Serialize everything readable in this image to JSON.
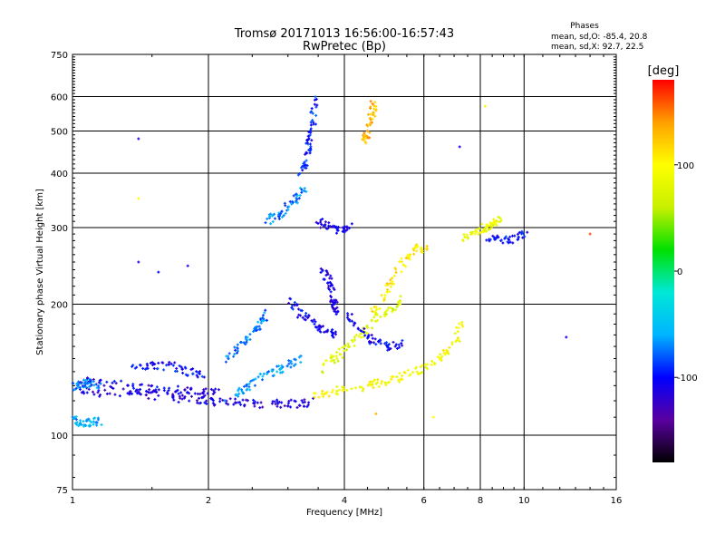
{
  "chart_data": {
    "type": "scatter",
    "title": "Tromsø 20171013 16:56:00-16:57:43",
    "subtitle": "RwPretec (Bp)",
    "xlabel": "Frequency [MHz]",
    "ylabel": "Stationary phase Virtual Height [km]",
    "x_scale": "log",
    "y_scale": "log",
    "xlim": [
      1,
      16
    ],
    "ylim": [
      75,
      750
    ],
    "x_ticks": [
      1,
      2,
      4,
      6,
      8,
      10,
      16
    ],
    "y_ticks": [
      75,
      100,
      200,
      300,
      400,
      500,
      600,
      750
    ],
    "grid": true,
    "phase_stats": {
      "title": "Phases",
      "line_o": "mean, sd,O: -85.4, 20.8",
      "line_x": "mean, sd,X:  92.7, 22.5"
    },
    "colorbar": {
      "label": "[deg]",
      "range": [
        -180,
        180
      ],
      "ticks": [
        100,
        0,
        -100
      ],
      "colors": [
        "#000000",
        "#5a00a0",
        "#0000ff",
        "#00b4ff",
        "#00e8d8",
        "#00e000",
        "#c8f000",
        "#ffff00",
        "#ffa000",
        "#ff0000"
      ]
    },
    "traces": [
      {
        "name": "",
        "phase": -115,
        "points": [
          [
            1.05,
            126
          ],
          [
            1.2,
            125
          ],
          [
            1.4,
            124
          ],
          [
            1.6,
            123
          ],
          [
            1.8,
            121
          ],
          [
            2.0,
            120
          ],
          [
            2.2,
            119
          ],
          [
            2.5,
            118
          ],
          [
            2.8,
            118
          ],
          [
            3.1,
            118
          ],
          [
            3.4,
            119
          ]
        ]
      },
      {
        "name": "",
        "phase": -110,
        "points": [
          [
            1.0,
            133
          ],
          [
            1.15,
            132
          ],
          [
            1.3,
            130
          ],
          [
            1.5,
            128
          ],
          [
            1.7,
            127
          ],
          [
            1.9,
            126
          ],
          [
            2.1,
            125
          ]
        ]
      },
      {
        "name": "",
        "phase": -60,
        "points": [
          [
            1.0,
            108
          ],
          [
            1.05,
            107
          ],
          [
            1.1,
            107
          ],
          [
            1.15,
            108
          ]
        ]
      },
      {
        "name": "",
        "phase": -70,
        "points": [
          [
            1.0,
            128
          ],
          [
            1.05,
            131
          ],
          [
            1.1,
            132
          ],
          [
            1.15,
            130
          ]
        ]
      },
      {
        "name": "",
        "phase": -100,
        "points": [
          [
            1.35,
            143
          ],
          [
            1.5,
            145
          ],
          [
            1.65,
            144
          ],
          [
            1.8,
            140
          ],
          [
            1.95,
            137
          ]
        ]
      },
      {
        "name": "",
        "phase": -65,
        "points": [
          [
            2.2,
            122
          ],
          [
            2.4,
            128
          ],
          [
            2.6,
            135
          ],
          [
            2.8,
            140
          ],
          [
            3.0,
            145
          ],
          [
            3.2,
            150
          ]
        ]
      },
      {
        "name": "",
        "phase": -75,
        "points": [
          [
            2.2,
            150
          ],
          [
            2.35,
            160
          ],
          [
            2.5,
            172
          ],
          [
            2.6,
            182
          ],
          [
            2.7,
            190
          ]
        ]
      },
      {
        "name": "",
        "phase": -70,
        "points": [
          [
            2.7,
            310
          ],
          [
            2.85,
            320
          ],
          [
            3.0,
            335
          ],
          [
            3.15,
            350
          ],
          [
            3.25,
            370
          ]
        ]
      },
      {
        "name": "",
        "phase": -95,
        "points": [
          [
            3.2,
            400
          ],
          [
            3.3,
            430
          ],
          [
            3.35,
            470
          ],
          [
            3.4,
            520
          ],
          [
            3.45,
            590
          ]
        ]
      },
      {
        "name": "",
        "phase": -105,
        "points": [
          [
            3.0,
            205
          ],
          [
            3.2,
            190
          ],
          [
            3.4,
            180
          ],
          [
            3.6,
            175
          ],
          [
            3.8,
            170
          ]
        ]
      },
      {
        "name": "",
        "phase": -110,
        "points": [
          [
            3.5,
            310
          ],
          [
            3.7,
            300
          ],
          [
            3.9,
            295
          ],
          [
            4.1,
            300
          ]
        ]
      },
      {
        "name": "",
        "phase": -115,
        "points": [
          [
            3.6,
            240
          ],
          [
            3.7,
            225
          ],
          [
            3.75,
            210
          ],
          [
            3.8,
            200
          ],
          [
            3.85,
            190
          ]
        ]
      },
      {
        "name": "",
        "phase": 95,
        "points": [
          [
            3.4,
            122
          ],
          [
            3.8,
            126
          ],
          [
            4.2,
            128
          ],
          [
            4.6,
            131
          ],
          [
            5.0,
            133
          ],
          [
            5.5,
            138
          ],
          [
            6.0,
            143
          ],
          [
            6.5,
            150
          ],
          [
            7.0,
            162
          ],
          [
            7.3,
            180
          ]
        ]
      },
      {
        "name": "",
        "phase": 75,
        "points": [
          [
            3.5,
            140
          ],
          [
            3.8,
            150
          ],
          [
            4.1,
            160
          ],
          [
            4.4,
            172
          ],
          [
            4.7,
            185
          ],
          [
            5.0,
            195
          ],
          [
            5.4,
            205
          ]
        ]
      },
      {
        "name": "",
        "phase": 110,
        "points": [
          [
            4.6,
            190
          ],
          [
            4.9,
            210
          ],
          [
            5.2,
            235
          ],
          [
            5.5,
            255
          ],
          [
            5.8,
            268
          ],
          [
            6.1,
            270
          ]
        ]
      },
      {
        "name": "",
        "phase": 90,
        "points": [
          [
            7.4,
            285
          ],
          [
            7.8,
            290
          ],
          [
            8.2,
            300
          ],
          [
            8.5,
            305
          ],
          [
            8.8,
            312
          ]
        ]
      },
      {
        "name": "",
        "phase": -100,
        "points": [
          [
            8.3,
            285
          ],
          [
            8.9,
            280
          ],
          [
            9.5,
            282
          ],
          [
            10.2,
            290
          ]
        ]
      },
      {
        "name": "",
        "phase": 130,
        "points": [
          [
            4.4,
            470
          ],
          [
            4.5,
            500
          ],
          [
            4.6,
            540
          ],
          [
            4.65,
            580
          ]
        ]
      },
      {
        "name": "",
        "phase": -105,
        "points": [
          [
            4.1,
            190
          ],
          [
            4.3,
            175
          ],
          [
            4.6,
            165
          ],
          [
            5.0,
            160
          ],
          [
            5.4,
            162
          ]
        ]
      }
    ],
    "isolated_points": [
      {
        "x": 1.4,
        "y": 480,
        "phase": -110
      },
      {
        "x": 1.4,
        "y": 350,
        "phase": 100
      },
      {
        "x": 1.4,
        "y": 250,
        "phase": -110
      },
      {
        "x": 1.55,
        "y": 237,
        "phase": -105
      },
      {
        "x": 1.8,
        "y": 245,
        "phase": -110
      },
      {
        "x": 8.2,
        "y": 570,
        "phase": 105
      },
      {
        "x": 7.2,
        "y": 460,
        "phase": -110
      },
      {
        "x": 12.4,
        "y": 168,
        "phase": -110
      },
      {
        "x": 14.0,
        "y": 290,
        "phase": 160
      },
      {
        "x": 6.3,
        "y": 110,
        "phase": 100
      },
      {
        "x": 4.7,
        "y": 112,
        "phase": 130
      }
    ]
  }
}
